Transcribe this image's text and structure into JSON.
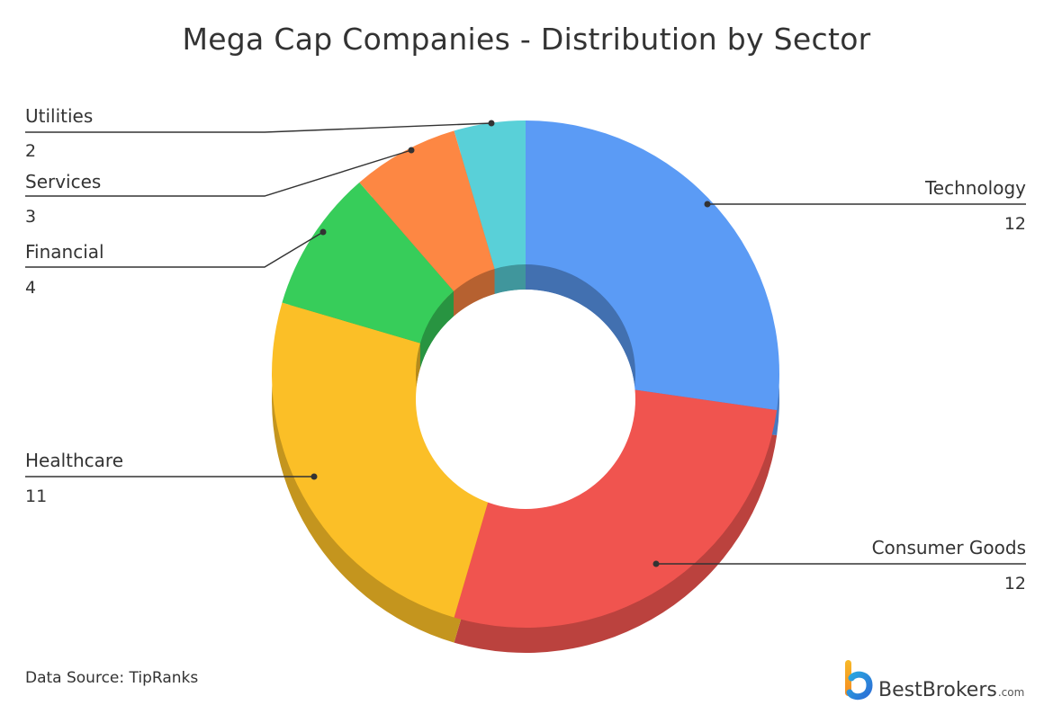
{
  "title": "Mega Cap Companies - Distribution by Sector",
  "chart_data": {
    "type": "pie",
    "subtype": "donut-3d",
    "slices": [
      {
        "label": "Technology",
        "value": 12,
        "color": "#5b9bf5"
      },
      {
        "label": "Consumer Goods",
        "value": 12,
        "color": "#f0544f"
      },
      {
        "label": "Healthcare",
        "value": 11,
        "color": "#fbbf27"
      },
      {
        "label": "Financial",
        "value": 4,
        "color": "#37cd5a"
      },
      {
        "label": "Services",
        "value": 3,
        "color": "#fd8743"
      },
      {
        "label": "Utilities",
        "value": 2,
        "color": "#59d0d8"
      }
    ]
  },
  "labels": {
    "technology": {
      "name": "Technology",
      "value": "12"
    },
    "consumer_goods": {
      "name": "Consumer Goods",
      "value": "12"
    },
    "healthcare": {
      "name": "Healthcare",
      "value": "11"
    },
    "financial": {
      "name": "Financial",
      "value": "4"
    },
    "services": {
      "name": "Services",
      "value": "3"
    },
    "utilities": {
      "name": "Utilities",
      "value": "2"
    }
  },
  "footer": {
    "source": "Data Source: TipRanks",
    "brand_name": "BestBrokers",
    "brand_domain": ".com"
  }
}
